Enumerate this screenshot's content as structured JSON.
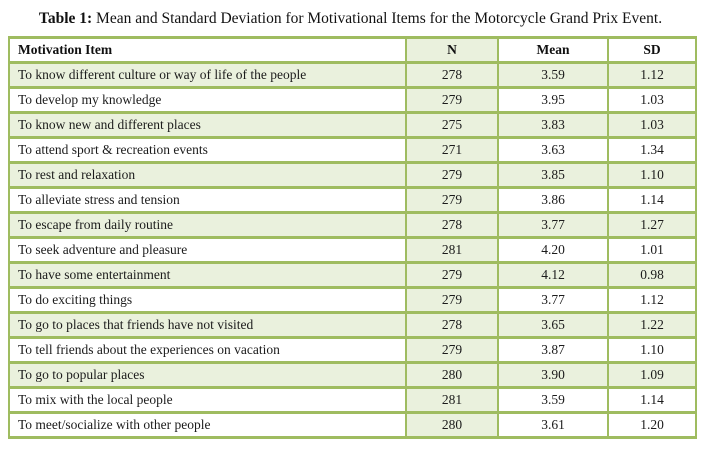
{
  "title": {
    "label": "Table 1:",
    "text": "Mean and Standard Deviation for Motivational Items for the Motorcycle Grand Prix Event."
  },
  "table": {
    "columns": [
      "Motivation Item",
      "N",
      "Mean",
      "SD"
    ],
    "rows": [
      {
        "item": "To know different culture or way of life of the people",
        "n": "278",
        "mean": "3.59",
        "sd": "1.12",
        "shaded": true
      },
      {
        "item": "To develop my knowledge",
        "n": "279",
        "mean": "3.95",
        "sd": "1.03",
        "shaded": false
      },
      {
        "item": "To know new and different places",
        "n": "275",
        "mean": "3.83",
        "sd": "1.03",
        "shaded": true
      },
      {
        "item": "To attend sport & recreation events",
        "n": "271",
        "mean": "3.63",
        "sd": "1.34",
        "shaded": false
      },
      {
        "item": "To rest and relaxation",
        "n": "279",
        "mean": "3.85",
        "sd": "1.10",
        "shaded": true
      },
      {
        "item": "To alleviate stress and tension",
        "n": "279",
        "mean": "3.86",
        "sd": "1.14",
        "shaded": false
      },
      {
        "item": "To escape from daily routine",
        "n": "278",
        "mean": "3.77",
        "sd": "1.27",
        "shaded": true
      },
      {
        "item": "To seek adventure and pleasure",
        "n": "281",
        "mean": "4.20",
        "sd": "1.01",
        "shaded": false
      },
      {
        "item": "To have some entertainment",
        "n": "279",
        "mean": "4.12",
        "sd": "0.98",
        "shaded": true
      },
      {
        "item": "To do exciting things",
        "n": "279",
        "mean": "3.77",
        "sd": "1.12",
        "shaded": false
      },
      {
        "item": "To go to places that friends have not visited",
        "n": "278",
        "mean": "3.65",
        "sd": "1.22",
        "shaded": true
      },
      {
        "item": "To tell friends about the experiences on vacation",
        "n": "279",
        "mean": "3.87",
        "sd": "1.10",
        "shaded": false
      },
      {
        "item": "To go to popular places",
        "n": "280",
        "mean": "3.90",
        "sd": "1.09",
        "shaded": true
      },
      {
        "item": "To mix with the local people",
        "n": "281",
        "mean": "3.59",
        "sd": "1.14",
        "shaded": false
      },
      {
        "item": "To meet/socialize with other people",
        "n": "280",
        "mean": "3.61",
        "sd": "1.20",
        "shaded": false
      }
    ]
  },
  "colors": {
    "border_green": "#9fbc60",
    "shaded_row_green": "#eaf1dd",
    "row_white": "#ffffff",
    "text": "#1b1b1b"
  }
}
